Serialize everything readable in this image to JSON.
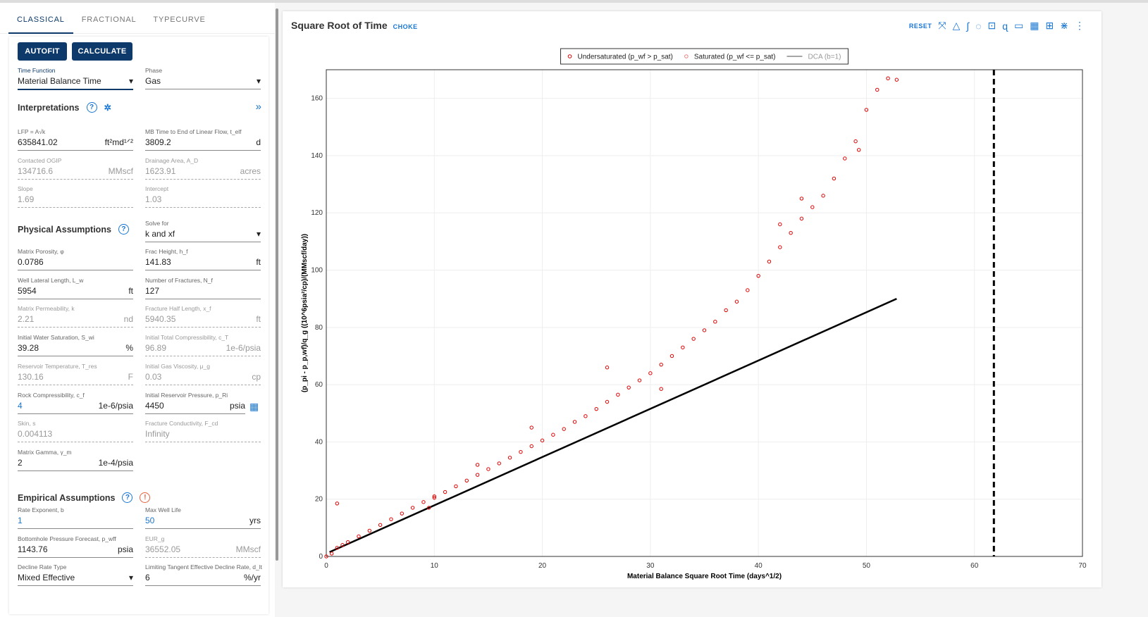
{
  "tabs": [
    "CLASSICAL",
    "FRACTIONAL",
    "TYPECURVE"
  ],
  "buttons": {
    "autofit": "AUTOFIT",
    "calculate": "CALCULATE"
  },
  "selects": {
    "time_function": {
      "label": "Time Function",
      "value": "Material Balance Time"
    },
    "phase": {
      "label": "Phase",
      "value": "Gas"
    },
    "solve_for": {
      "label": "Solve for",
      "value": "k and xf"
    },
    "decline_rate_type": {
      "label": "Decline Rate Type",
      "value": "Mixed Effective"
    }
  },
  "sections": {
    "interpretations": "Interpretations",
    "physical": "Physical Assumptions",
    "empirical": "Empirical Assumptions"
  },
  "interpretations": [
    {
      "label": "LFP = A√k",
      "value": "635841.02",
      "unit": "ft²md¹ᐟ²"
    },
    {
      "label": "MB Time to End of Linear Flow, t_elf",
      "value": "3809.2",
      "unit": "d"
    },
    {
      "label": "Contacted OGIP",
      "value": "134716.6",
      "unit": "MMscf",
      "ro": true
    },
    {
      "label": "Drainage Area, A_D",
      "value": "1623.91",
      "unit": "acres",
      "ro": true
    },
    {
      "label": "Slope",
      "value": "1.69",
      "unit": "",
      "ro": true
    },
    {
      "label": "Intercept",
      "value": "1.03",
      "unit": "",
      "ro": true
    }
  ],
  "physical": [
    {
      "label": "Matrix Porosity, φ",
      "value": "0.0786",
      "unit": ""
    },
    {
      "label": "Frac Height, h_f",
      "value": "141.83",
      "unit": "ft"
    },
    {
      "label": "Well Lateral Length, L_w",
      "value": "5954",
      "unit": "ft"
    },
    {
      "label": "Number of Fractures, N_f",
      "value": "127",
      "unit": ""
    },
    {
      "label": "Matrix Permeability, k",
      "value": "2.21",
      "unit": "nd",
      "ro": true
    },
    {
      "label": "Fracture Half Length, x_f",
      "value": "5940.35",
      "unit": "ft",
      "ro": true
    },
    {
      "label": "Initial Water Saturation, S_wi",
      "value": "39.28",
      "unit": "%"
    },
    {
      "label": "Initial Total Compressibility, c_T",
      "value": "96.89",
      "unit": "1e-6/psia",
      "ro": true
    },
    {
      "label": "Reservoir Temperature, T_res",
      "value": "130.16",
      "unit": "F",
      "ro": true
    },
    {
      "label": "Initial Gas Viscosity, μ_g",
      "value": "0.03",
      "unit": "cp",
      "ro": true
    },
    {
      "label": "Rock Compressibility, c_f",
      "value": "4",
      "unit": "1e-6/psia",
      "blue": true
    },
    {
      "label": "Initial Reservoir Pressure, p_Ri",
      "value": "4450",
      "unit": "psia"
    },
    {
      "label": "Skin, s",
      "value": "0.004113",
      "unit": "",
      "ro": true
    },
    {
      "label": "Fracture Conductivity, F_cd",
      "value": "Infinity",
      "unit": "",
      "ro": true
    },
    {
      "label": "Matrix Gamma, γ_m",
      "value": "2",
      "unit": "1e-4/psia"
    }
  ],
  "empirical": [
    {
      "label": "Rate Exponent, b",
      "value": "1",
      "unit": "",
      "blue": true
    },
    {
      "label": "Max Well Life",
      "value": "50",
      "unit": "yrs",
      "blue": true
    },
    {
      "label": "Bottomhole Pressure Forecast, p_wff",
      "value": "1143.76",
      "unit": "psia"
    },
    {
      "label": "EUR_g",
      "value": "36552.05",
      "unit": "MMscf",
      "ro": true
    },
    {
      "label": "Limiting Tangent Effective Decline Rate, d_lt",
      "value": "6",
      "unit": "%/yr"
    }
  ],
  "chart": {
    "title": "Square Root of Time",
    "subtitle": "CHOKE",
    "reset": "RESET",
    "toolbar_icons": [
      "lock-crosshair-icon",
      "triangle-icon",
      "integral-icon",
      "lasso-select-icon",
      "unlock-icon",
      "lasso-icon",
      "comment-icon",
      "table-icon",
      "fit-icon",
      "collapse-icon",
      "more-icon"
    ]
  },
  "chart_data": {
    "type": "scatter",
    "xlabel": "Material Balance Square Root Time (days^1/2)",
    "ylabel": "(p_pi - p_p,wf)/q_g ((10^6psia²/cp)/(MMscf/day))",
    "xlim": [
      0,
      70
    ],
    "ylim": [
      0,
      170
    ],
    "xticks": [
      0,
      10,
      20,
      30,
      40,
      50,
      60,
      70
    ],
    "yticks": [
      0,
      20,
      40,
      60,
      80,
      100,
      120,
      140,
      160
    ],
    "grid": true,
    "legend_position": "top-center",
    "legend": [
      "Undersaturated (p_wf > p_sat)",
      "Saturated (p_wf <= p_sat)",
      "DCA (b=1)"
    ],
    "colors": {
      "undersaturated": "#e00000",
      "saturated": "#f08080",
      "dca": "#000000"
    },
    "undersaturated_points": [
      [
        0,
        0
      ],
      [
        0.5,
        1
      ],
      [
        1,
        3
      ],
      [
        1,
        18.5
      ],
      [
        1.5,
        4
      ],
      [
        2,
        5
      ],
      [
        3,
        7
      ],
      [
        4,
        9
      ],
      [
        5,
        11
      ],
      [
        6,
        13
      ],
      [
        7,
        15
      ],
      [
        8,
        17
      ],
      [
        9,
        19
      ],
      [
        9.5,
        17
      ],
      [
        10,
        20.5
      ],
      [
        10,
        21
      ],
      [
        11,
        22.5
      ],
      [
        12,
        24.5
      ],
      [
        13,
        26.5
      ],
      [
        14,
        28.5
      ],
      [
        14,
        32
      ],
      [
        15,
        30.5
      ],
      [
        16,
        32.5
      ],
      [
        17,
        34.5
      ],
      [
        18,
        36.5
      ],
      [
        19,
        38.5
      ],
      [
        19,
        45
      ],
      [
        20,
        40.5
      ],
      [
        21,
        42.5
      ],
      [
        22,
        44.5
      ],
      [
        23,
        47
      ],
      [
        24,
        49
      ],
      [
        25,
        51.5
      ],
      [
        26,
        54
      ],
      [
        26,
        66
      ],
      [
        27,
        56.5
      ],
      [
        28,
        59
      ],
      [
        29,
        61.5
      ],
      [
        30,
        64
      ],
      [
        31,
        67
      ],
      [
        31,
        58.5
      ],
      [
        32,
        70
      ],
      [
        33,
        73
      ],
      [
        34,
        76
      ],
      [
        35,
        79
      ],
      [
        36,
        82
      ],
      [
        37,
        86
      ],
      [
        38,
        89
      ],
      [
        39,
        93
      ],
      [
        40,
        98
      ],
      [
        41,
        103
      ],
      [
        42,
        108
      ],
      [
        42,
        116
      ],
      [
        43,
        113
      ],
      [
        44,
        118
      ],
      [
        44,
        125
      ],
      [
        45,
        122
      ],
      [
        46,
        126
      ],
      [
        47,
        132
      ],
      [
        48,
        139
      ],
      [
        49,
        145
      ],
      [
        49.3,
        142
      ],
      [
        50,
        156
      ],
      [
        51,
        163
      ],
      [
        52,
        167
      ],
      [
        52.8,
        166.5
      ]
    ],
    "dca_line": [
      [
        0.3,
        1.5
      ],
      [
        52.8,
        90
      ]
    ],
    "vertical_marker_x": 61.8
  }
}
